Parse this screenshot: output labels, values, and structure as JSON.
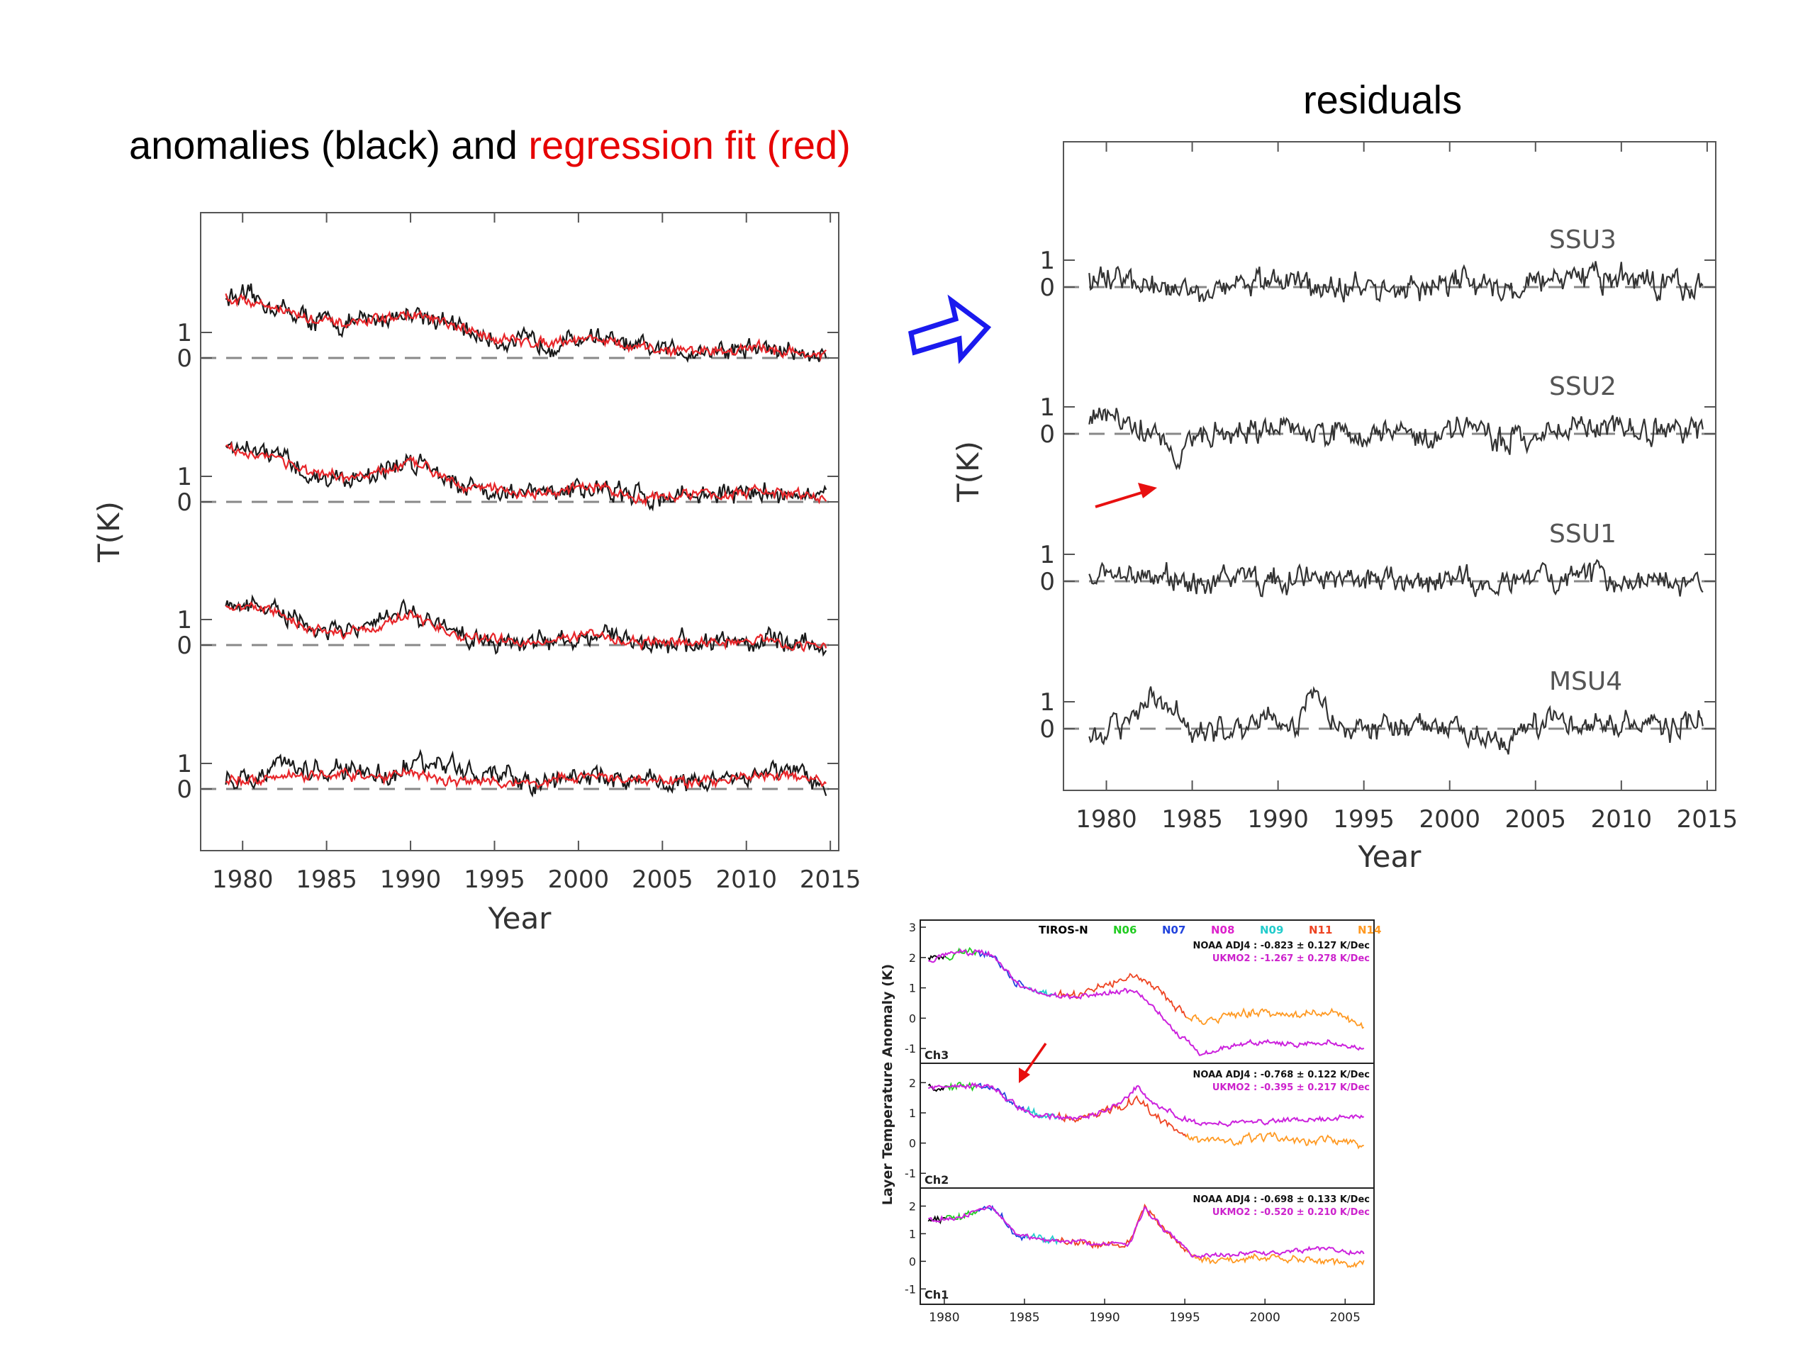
{
  "slide": {
    "left_title": {
      "part1": "anomalies (black) and ",
      "part2": "regression fit (red)"
    },
    "right_title": "residuals",
    "colors": {
      "anomaly": "#1a1a1a",
      "fit": "#e8262a",
      "residual": "#333333",
      "arrow_blue": "#1a1aee",
      "arrow_red": "#e81010"
    }
  },
  "chart_data": [
    {
      "id": "left",
      "type": "line",
      "ylabel": "T(K)",
      "xlabel": "Year",
      "xlim": [
        1977.5,
        2015.5
      ],
      "xticks": [
        "1980",
        "1985",
        "1990",
        "1995",
        "2000",
        "2005",
        "2010",
        "2015"
      ],
      "panel_ticks": [
        "1",
        "0"
      ],
      "series": [
        {
          "name": "anomalies (black)"
        },
        {
          "name": "regression fit (red)"
        }
      ],
      "panels": [
        {
          "anomaly_x": [
            1979.0,
            1980.5,
            1982,
            1984,
            1986,
            1988,
            1990,
            1991,
            1993,
            1995,
            1997,
            1999,
            2001,
            2003,
            2005,
            2007,
            2009,
            2011,
            2013,
            2014.5
          ],
          "anomaly_y": [
            2.4,
            2.3,
            2.0,
            1.5,
            1.3,
            1.5,
            1.8,
            1.7,
            1.1,
            0.7,
            0.6,
            0.6,
            0.9,
            0.4,
            0.3,
            0.3,
            0.3,
            0.4,
            0.2,
            0.1
          ],
          "fit_y": [
            2.4,
            2.2,
            2.0,
            1.5,
            1.3,
            1.5,
            1.7,
            1.6,
            1.1,
            0.8,
            0.6,
            0.7,
            0.8,
            0.4,
            0.3,
            0.3,
            0.3,
            0.4,
            0.2,
            0.1
          ]
        },
        {
          "anomaly_x": [
            1979.0,
            1980.5,
            1982,
            1984,
            1986,
            1988,
            1990,
            1991,
            1993,
            1995,
            1997,
            1999,
            2001,
            2003,
            2005,
            2007,
            2009,
            2011,
            2013,
            2014.5
          ],
          "anomaly_y": [
            2.1,
            2.0,
            1.8,
            1.0,
            0.9,
            1.1,
            1.6,
            1.5,
            0.7,
            0.4,
            0.3,
            0.4,
            0.6,
            0.2,
            0.2,
            0.3,
            0.3,
            0.4,
            0.3,
            0.1
          ],
          "fit_y": [
            2.1,
            1.9,
            1.8,
            1.1,
            0.9,
            1.1,
            1.5,
            1.4,
            0.7,
            0.5,
            0.3,
            0.4,
            0.6,
            0.2,
            0.2,
            0.3,
            0.3,
            0.4,
            0.3,
            0.1
          ]
        },
        {
          "anomaly_x": [
            1979.0,
            1980.5,
            1982,
            1984,
            1986,
            1988,
            1990,
            1991,
            1993,
            1995,
            1997,
            1999,
            2001,
            2003,
            2005,
            2007,
            2009,
            2011,
            2013,
            2014.5
          ],
          "anomaly_y": [
            1.5,
            1.6,
            1.3,
            0.6,
            0.5,
            0.8,
            1.4,
            1.0,
            0.3,
            0.2,
            0.1,
            0.2,
            0.5,
            0.1,
            0.1,
            0.1,
            0.1,
            0.2,
            0.0,
            0.0
          ],
          "fit_y": [
            1.4,
            1.5,
            1.3,
            0.6,
            0.5,
            0.7,
            1.2,
            0.9,
            0.3,
            0.2,
            0.1,
            0.3,
            0.4,
            0.1,
            0.1,
            0.1,
            0.1,
            0.2,
            0.0,
            0.0
          ]
        },
        {
          "anomaly_x": [
            1979.0,
            1980.5,
            1982,
            1984,
            1986,
            1988,
            1990,
            1991,
            1993,
            1995,
            1997,
            1999,
            2001,
            2003,
            2005,
            2007,
            2009,
            2011,
            2013,
            2014.5
          ],
          "anomaly_y": [
            0.4,
            0.3,
            1.0,
            0.6,
            0.8,
            0.5,
            0.9,
            1.0,
            0.9,
            0.4,
            0.2,
            0.4,
            0.6,
            0.3,
            0.4,
            0.2,
            0.5,
            0.7,
            0.6,
            0.2
          ],
          "fit_y": [
            0.3,
            0.3,
            0.6,
            0.5,
            0.6,
            0.4,
            0.7,
            0.5,
            0.3,
            0.3,
            0.2,
            0.4,
            0.5,
            0.3,
            0.4,
            0.2,
            0.4,
            0.6,
            0.5,
            0.2
          ]
        }
      ]
    },
    {
      "id": "right",
      "type": "line",
      "ylabel": "T(K)",
      "xlabel": "Year",
      "xlim": [
        1977.5,
        2015.5
      ],
      "xticks": [
        "1980",
        "1985",
        "1990",
        "1995",
        "2000",
        "2005",
        "2010",
        "2015"
      ],
      "panel_ticks": [
        "1",
        "0"
      ],
      "panels": [
        {
          "name": "SSU3",
          "x": [
            1979,
            1981,
            1983,
            1985,
            1987,
            1989,
            1991,
            1993,
            1995,
            1997,
            1999,
            2001,
            2003,
            2005,
            2007,
            2009,
            2011,
            2013,
            2014.5
          ],
          "y": [
            0.2,
            0.5,
            0.1,
            0.0,
            0.1,
            0.1,
            0.3,
            0.0,
            -0.1,
            0.0,
            0.1,
            0.2,
            -0.1,
            0.1,
            0.3,
            0.3,
            0.2,
            0.1,
            0.0
          ]
        },
        {
          "name": "SSU2",
          "x": [
            1979,
            1981,
            1983,
            1983.8,
            1984.3,
            1985,
            1987,
            1989,
            1991,
            1993,
            1995,
            1997,
            1999,
            2001,
            2003,
            2005,
            2007,
            2009,
            2011,
            2013,
            2014.5
          ],
          "y": [
            0.6,
            0.4,
            0.1,
            -0.9,
            -1.2,
            -0.2,
            0.1,
            0.2,
            0.2,
            0.0,
            0.0,
            0.0,
            0.1,
            0.2,
            -0.2,
            0.1,
            0.3,
            0.3,
            0.2,
            0.1,
            0.0
          ]
        },
        {
          "name": "SSU1",
          "x": [
            1979,
            1981,
            1983,
            1985,
            1987,
            1989,
            1991,
            1993,
            1995,
            1997,
            1999,
            2001,
            2003,
            2005,
            2007,
            2009,
            2011,
            2013,
            2014.5
          ],
          "y": [
            0.1,
            0.3,
            0.1,
            -0.1,
            0.1,
            0.0,
            0.2,
            0.1,
            0.0,
            0.0,
            0.0,
            0.1,
            -0.2,
            0.0,
            0.2,
            0.1,
            0.1,
            0.0,
            0.0
          ]
        },
        {
          "name": "MSU4",
          "x": [
            1979,
            1981,
            1982.5,
            1983.5,
            1985,
            1987,
            1989,
            1991,
            1991.8,
            1993,
            1995,
            1997,
            1999,
            2001,
            2003,
            2005,
            2007,
            2009,
            2011,
            2013,
            2014.5
          ],
          "y": [
            -0.3,
            0.2,
            1.3,
            0.8,
            -0.3,
            0.0,
            0.2,
            0.1,
            1.4,
            0.5,
            0.0,
            0.0,
            0.1,
            -0.1,
            -0.5,
            0.1,
            0.3,
            0.2,
            0.3,
            0.1,
            0.1
          ]
        }
      ]
    },
    {
      "id": "inset",
      "type": "line",
      "ylabel": "Layer Temperature Anomaly (K)",
      "xlim": [
        1978.5,
        2006.8
      ],
      "xticks": [
        "1980",
        "1985",
        "1990",
        "1995",
        "2000",
        "2005"
      ],
      "legend": [
        {
          "label": "TIROS-N",
          "color": "#000000"
        },
        {
          "label": "N06",
          "color": "#22cc22"
        },
        {
          "label": "N07",
          "color": "#2244dd"
        },
        {
          "label": "N08",
          "color": "#dd22cc"
        },
        {
          "label": "N09",
          "color": "#22cccc"
        },
        {
          "label": "N11",
          "color": "#ee4422"
        },
        {
          "label": "N14",
          "color": "#ff9922"
        }
      ],
      "panels": [
        {
          "name": "Ch3",
          "yticks": [
            "3",
            "2",
            "1",
            "0",
            "-1"
          ],
          "ylim": [
            -1.3,
            3.0
          ],
          "noaa": "NOAA ADJ4 : -0.823 ± 0.127 K/Dec",
          "ukmo": "UKMO2 : -1.267 ± 0.278 K/Dec",
          "x": [
            1979,
            1981,
            1983,
            1984.5,
            1986,
            1988,
            1989.5,
            1991,
            1992,
            1993,
            1994.5,
            1996,
            1998,
            2000,
            2002,
            2004,
            2006
          ],
          "noaa_y": [
            1.9,
            2.2,
            2.1,
            1.2,
            0.8,
            0.7,
            1.0,
            1.3,
            1.5,
            1.1,
            0.3,
            -0.1,
            0.1,
            0.2,
            0.1,
            0.2,
            -0.2
          ],
          "ukmo_y": [
            1.9,
            2.2,
            2.1,
            1.2,
            0.8,
            0.7,
            0.8,
            0.9,
            0.9,
            0.4,
            -0.5,
            -1.2,
            -0.9,
            -0.8,
            -0.9,
            -0.8,
            -1.0
          ]
        },
        {
          "name": "Ch2",
          "yticks": [
            "2",
            "1",
            "0",
            "-1"
          ],
          "ylim": [
            -1.3,
            2.5
          ],
          "noaa": "NOAA ADJ4 : -0.768 ± 0.122 K/Dec",
          "ukmo": "UKMO2 : -0.395 ± 0.217 K/Dec",
          "x": [
            1979,
            1981,
            1983,
            1984.5,
            1986,
            1988,
            1989.5,
            1991,
            1992,
            1993,
            1994.5,
            1996,
            1998,
            2000,
            2002,
            2004,
            2006
          ],
          "noaa_y": [
            1.8,
            1.9,
            1.9,
            1.2,
            0.9,
            0.8,
            1.0,
            1.2,
            1.5,
            1.0,
            0.4,
            0.1,
            0.0,
            0.2,
            0.1,
            0.1,
            0.0
          ],
          "ukmo_y": [
            1.8,
            1.9,
            1.9,
            1.2,
            0.9,
            0.8,
            1.0,
            1.3,
            1.9,
            1.3,
            0.9,
            0.6,
            0.7,
            0.7,
            0.8,
            0.8,
            0.9
          ]
        },
        {
          "name": "Ch1",
          "yticks": [
            "2",
            "1",
            "0",
            "-1"
          ],
          "ylim": [
            -1.3,
            2.5
          ],
          "noaa": "NOAA ADJ4 : -0.698 ± 0.133 K/Dec",
          "ukmo": "UKMO2 : -0.520 ± 0.210 K/Dec",
          "x": [
            1979,
            1981,
            1983,
            1984.5,
            1986,
            1988,
            1990,
            1991.5,
            1992.5,
            1994,
            1995.5,
            1997,
            1999,
            2001,
            2003,
            2005,
            2006
          ],
          "noaa_y": [
            1.5,
            1.6,
            2.0,
            1.0,
            0.8,
            0.7,
            0.6,
            0.6,
            2.0,
            1.0,
            0.1,
            0.0,
            0.1,
            0.1,
            0.1,
            -0.1,
            -0.1
          ],
          "ukmo_y": [
            1.5,
            1.6,
            2.0,
            1.0,
            0.8,
            0.7,
            0.6,
            0.6,
            1.9,
            1.0,
            0.2,
            0.2,
            0.3,
            0.3,
            0.5,
            0.3,
            0.3
          ]
        }
      ]
    }
  ]
}
